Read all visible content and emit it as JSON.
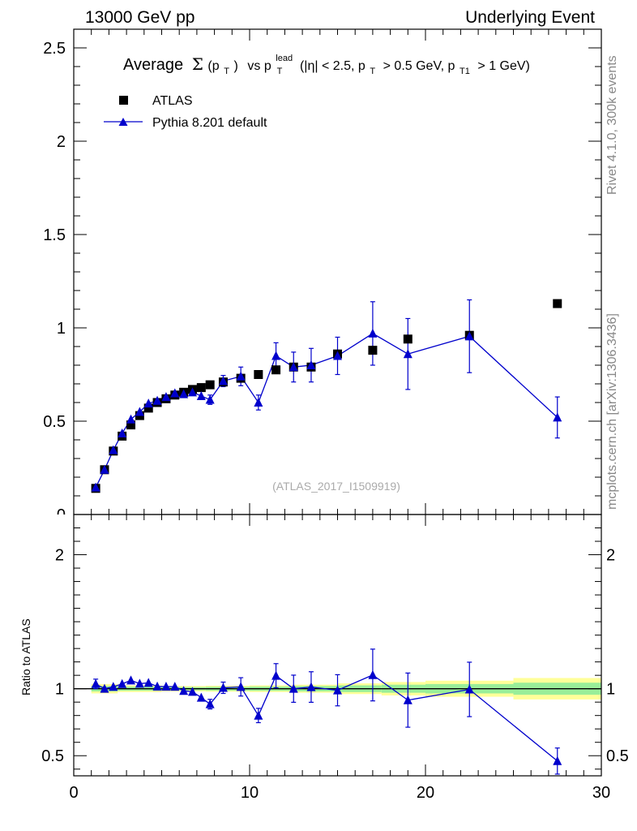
{
  "header": {
    "left": "13000 GeV pp",
    "right": "Underlying Event"
  },
  "side_labels": {
    "rivet": "Rivet 4.1.0,  300k events",
    "mcplots": "mcplots.cern.ch [arXiv:1306.3436]"
  },
  "chart_data": {
    "type": "scatter",
    "title_parts": {
      "prefix": "Average",
      "sigma": "Σ",
      "pt_open": "(p",
      "pt_sub": "T",
      "pt_close": ")",
      "vs": "vs p",
      "lead_sup": "lead",
      "lead_sub": "T",
      "cuts1": "(|η| < 2.5, p",
      "cuts1_sub": "T",
      "cuts2": "> 0.5 GeV, p",
      "cuts2_sub": "T1",
      "cuts3": "> 1 GeV)"
    },
    "watermark": "(ATLAS_2017_I1509919)",
    "x_range": [
      0,
      30
    ],
    "y_range_main": [
      0,
      2.6
    ],
    "y_range_ratio": [
      0.35,
      2.3
    ],
    "x_ticks": [
      "0",
      "10",
      "20",
      "30"
    ],
    "y_ticks_main": [
      "0.5",
      "1",
      "1.5",
      "2",
      "2.5"
    ],
    "y_ticks_main_cut": "0",
    "y_ticks_ratio": [
      "0.5",
      "1",
      "2"
    ],
    "ratio_ylabel": "Ratio to ATLAS",
    "legend": [
      "ATLAS",
      "Pythia 8.201 default"
    ],
    "atlas": {
      "x": [
        1.25,
        1.75,
        2.25,
        2.75,
        3.25,
        3.75,
        4.25,
        4.75,
        5.25,
        5.75,
        6.25,
        6.75,
        7.25,
        7.75,
        8.5,
        9.5,
        10.5,
        11.5,
        12.5,
        13.5,
        15,
        17,
        19,
        22.5,
        27.5
      ],
      "y": [
        0.14,
        0.24,
        0.34,
        0.42,
        0.48,
        0.53,
        0.57,
        0.6,
        0.62,
        0.64,
        0.655,
        0.67,
        0.68,
        0.695,
        0.71,
        0.73,
        0.75,
        0.775,
        0.79,
        0.79,
        0.86,
        0.88,
        0.94,
        0.96,
        1.13
      ],
      "band_x": [
        1.0,
        2.5,
        5.0,
        7.5,
        10,
        12.5,
        15,
        17.5,
        20,
        25,
        30
      ],
      "band_stat": [
        0.02,
        0.015,
        0.012,
        0.014,
        0.016,
        0.02,
        0.025,
        0.03,
        0.035,
        0.045,
        0.055
      ],
      "band_tot": [
        0.035,
        0.025,
        0.02,
        0.022,
        0.025,
        0.03,
        0.04,
        0.05,
        0.06,
        0.08,
        0.1
      ]
    },
    "pythia": {
      "x": [
        1.25,
        1.75,
        2.25,
        2.75,
        3.25,
        3.75,
        4.25,
        4.75,
        5.25,
        5.75,
        6.25,
        6.75,
        7.25,
        7.75,
        8.5,
        9.5,
        10.5,
        11.5,
        12.5,
        13.5,
        15,
        17,
        19,
        22.5,
        27.5
      ],
      "y": [
        0.145,
        0.24,
        0.345,
        0.435,
        0.51,
        0.55,
        0.595,
        0.61,
        0.63,
        0.65,
        0.645,
        0.655,
        0.635,
        0.615,
        0.715,
        0.74,
        0.6,
        0.85,
        0.79,
        0.8,
        0.85,
        0.97,
        0.86,
        0.955,
        0.52
      ],
      "err": [
        0.005,
        0.005,
        0.006,
        0.007,
        0.008,
        0.009,
        0.01,
        0.01,
        0.012,
        0.012,
        0.015,
        0.018,
        0.02,
        0.025,
        0.03,
        0.05,
        0.04,
        0.07,
        0.08,
        0.09,
        0.1,
        0.17,
        0.19,
        0.195,
        0.11
      ]
    }
  }
}
